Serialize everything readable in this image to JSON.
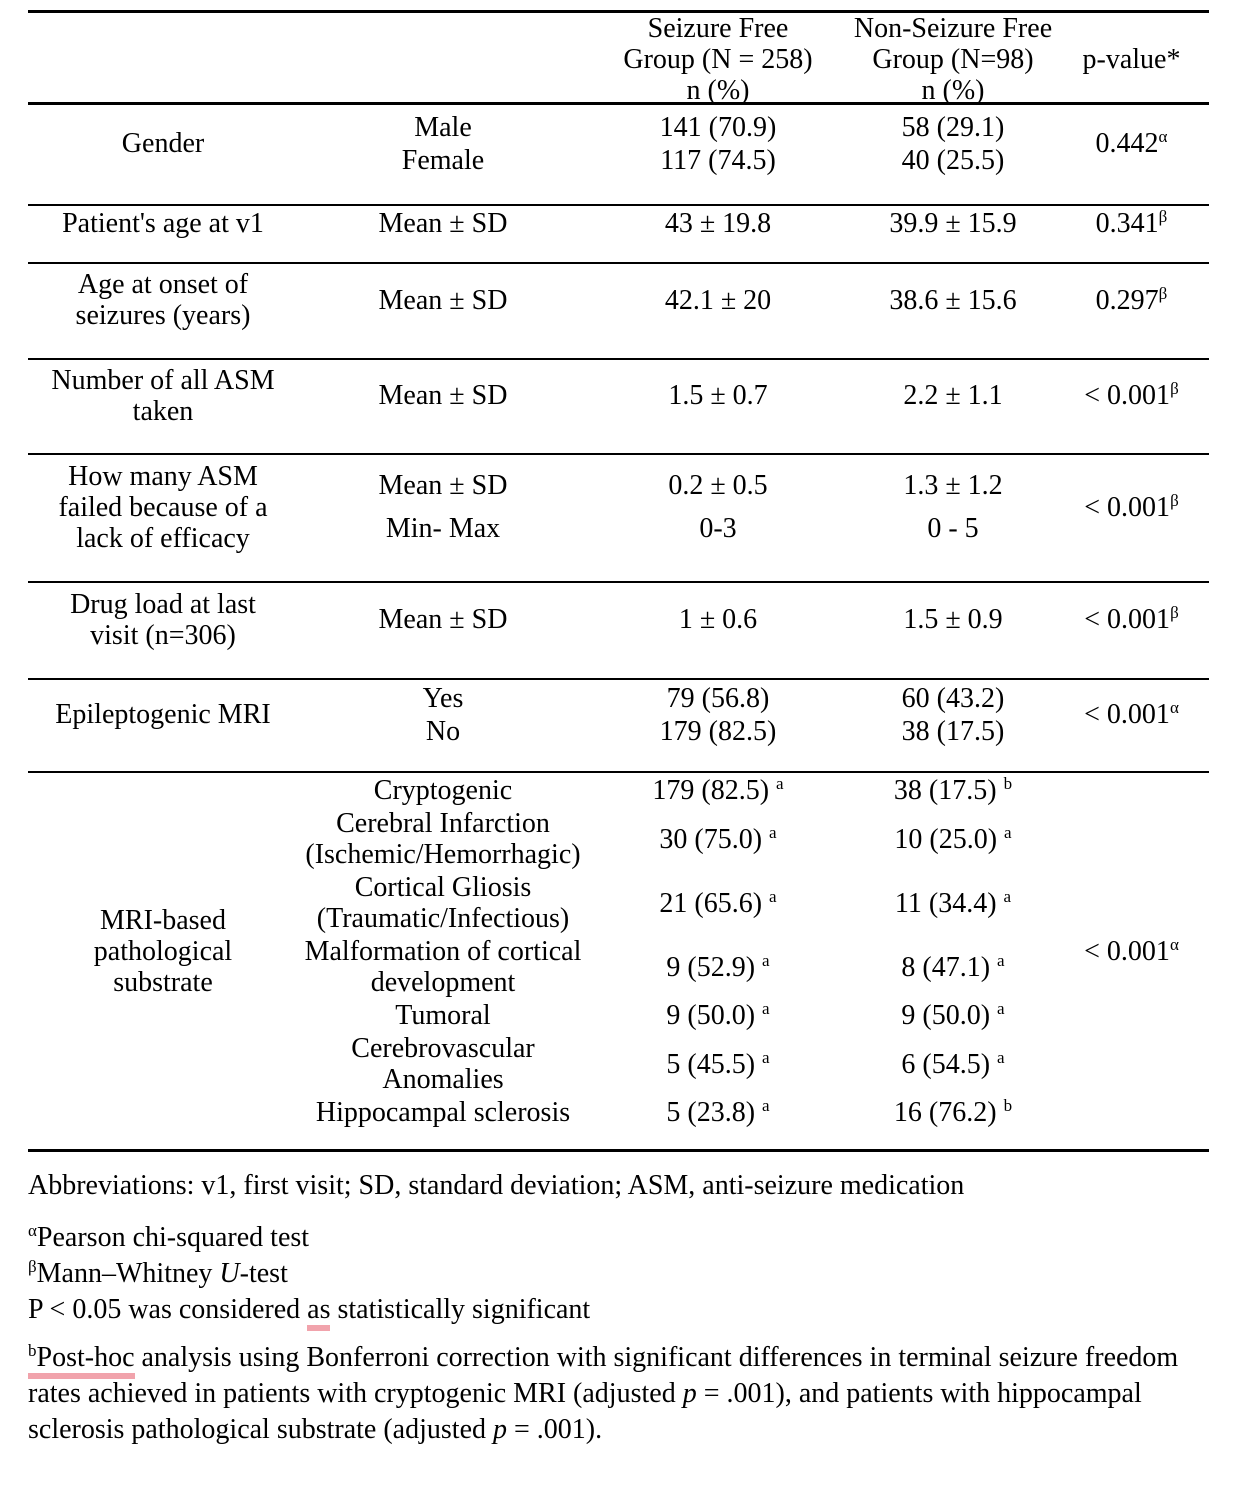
{
  "table": {
    "header": {
      "seizure_free": {
        "line1": "Seizure Free",
        "line2": "Group (N = 258)",
        "line3": "n (%)"
      },
      "non_seizure_free": {
        "line1": "Non-Seizure Free",
        "line2": "Group (N=98)",
        "line3": "n (%)"
      },
      "p_value": "p-value*"
    },
    "groups": [
      {
        "label": "Gender",
        "rows": [
          {
            "sub": "Male",
            "sf": "141 (70.9)",
            "nsf": "58 (29.1)"
          },
          {
            "sub": "Female",
            "sf": "117 (74.5)",
            "nsf": "40 (25.5)"
          }
        ],
        "p": "0.442",
        "p_sup": "α"
      },
      {
        "label": "Patient's age at v1",
        "rows": [
          {
            "sub": "Mean ± SD",
            "sf": "43 ± 19.8",
            "nsf": "39.9 ± 15.9"
          }
        ],
        "p": "0.341",
        "p_sup": "β"
      },
      {
        "label": "Age at onset of seizures (years)",
        "rows": [
          {
            "sub": "Mean ± SD",
            "sf": "42.1 ± 20",
            "nsf": "38.6 ± 15.6"
          }
        ],
        "p": "0.297",
        "p_sup": "β"
      },
      {
        "label": "Number of all ASM taken",
        "rows": [
          {
            "sub": "Mean ± SD",
            "sf": "1.5 ± 0.7",
            "nsf": "2.2 ± 1.1"
          }
        ],
        "p": "< 0.001",
        "p_sup": "β"
      },
      {
        "label": "How many ASM failed because of a lack of efficacy",
        "rows": [
          {
            "sub": "Mean ± SD",
            "sf": "0.2 ± 0.5",
            "nsf": "1.3 ± 1.2"
          },
          {
            "sub": "Min- Max",
            "sf": "0-3",
            "nsf": "0 - 5"
          }
        ],
        "p": "< 0.001",
        "p_sup": "β"
      },
      {
        "label": "Drug load at last visit (n=306)",
        "rows": [
          {
            "sub": "Mean ± SD",
            "sf": "1 ± 0.6",
            "nsf": "1.5 ± 0.9"
          }
        ],
        "p": "< 0.001",
        "p_sup": "β"
      },
      {
        "label": "Epileptogenic MRI",
        "rows": [
          {
            "sub": "Yes",
            "sf": "79 (56.8)",
            "nsf": "60 (43.2)"
          },
          {
            "sub": "No",
            "sf": "179 (82.5)",
            "nsf": "38 (17.5)"
          }
        ],
        "p": "< 0.001",
        "p_sup": "α"
      },
      {
        "label": "MRI-based pathological substrate",
        "rows": [
          {
            "sub": "Cryptogenic",
            "sf": "179 (82.5)",
            "sf_sup": "a",
            "nsf": "38 (17.5)",
            "nsf_sup": "b"
          },
          {
            "sub": "Cerebral Infarction (Ischemic/Hemorrhagic)",
            "sf": "30 (75.0)",
            "sf_sup": "a",
            "nsf": "10 (25.0)",
            "nsf_sup": "a"
          },
          {
            "sub": "Cortical Gliosis (Traumatic/Infectious)",
            "sf": "21 (65.6)",
            "sf_sup": "a",
            "nsf": "11 (34.4)",
            "nsf_sup": "a"
          },
          {
            "sub": "Malformation of cortical development",
            "sf": "9 (52.9)",
            "sf_sup": "a",
            "nsf": "8 (47.1)",
            "nsf_sup": "a"
          },
          {
            "sub": "Tumoral",
            "sf": "9 (50.0)",
            "sf_sup": "a",
            "nsf": "9 (50.0)",
            "nsf_sup": "a"
          },
          {
            "sub": "Cerebrovascular Anomalies",
            "sf": "5 (45.5)",
            "sf_sup": "a",
            "nsf": "6 (54.5)",
            "nsf_sup": "a"
          },
          {
            "sub": "Hippocampal sclerosis",
            "sf": "5 (23.8)",
            "sf_sup": "a",
            "nsf": "16 (76.2)",
            "nsf_sup": "b"
          }
        ],
        "p": "< 0.001",
        "p_sup": "α"
      }
    ]
  },
  "footnotes": {
    "abbreviations": "Abbreviations: v1, first visit; SD, standard deviation; ASM, anti-seizure medication",
    "alpha_sup": "α",
    "alpha_text": "Pearson chi-squared test",
    "beta_sup": "β",
    "beta_pre": "Mann–Whitney ",
    "beta_italic": "U",
    "beta_post": "-test",
    "sig_pre": "P < 0.05 was considered ",
    "sig_marked": "as",
    "sig_post": " statistically significant",
    "posthoc_sup": "b",
    "posthoc_marked": "Post-hoc",
    "posthoc_seg1": " analysis using Bonferroni correction with significant differences in terminal seizure freedom rates achieved in patients with cryptogenic MRI (adjusted ",
    "posthoc_italic1": "p",
    "posthoc_seg2": " = .001), and patients with hippocampal sclerosis pathological substrate (adjusted ",
    "posthoc_italic2": "p",
    "posthoc_seg3": " = .001).",
    "underline_color": "#f1a3ac"
  }
}
